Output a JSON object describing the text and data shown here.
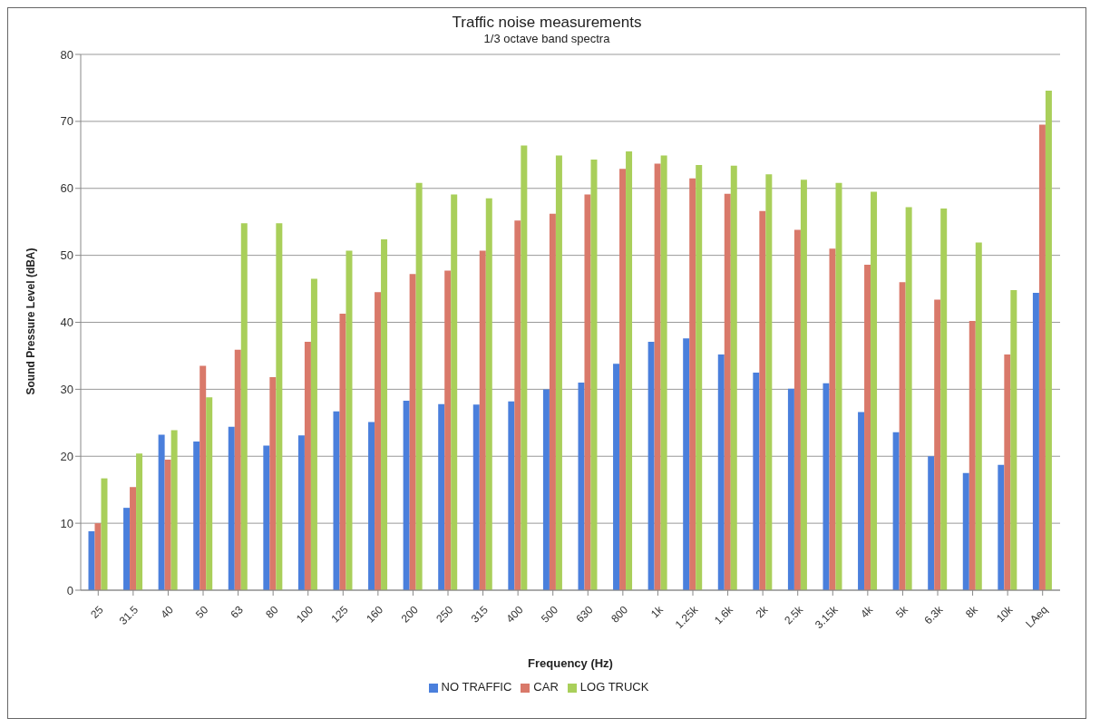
{
  "chart_data": {
    "type": "bar",
    "title": "Traffic noise measurements",
    "subtitle": "1/3 octave band spectra",
    "xlabel": "Frequency (Hz)",
    "ylabel": "Sound Pressure Level (dBA)",
    "categories": [
      "25",
      "31.5",
      "40",
      "50",
      "63",
      "80",
      "100",
      "125",
      "160",
      "200",
      "250",
      "315",
      "400",
      "500",
      "630",
      "800",
      "1k",
      "1.25k",
      "1.6k",
      "2k",
      "2.5k",
      "3.15k",
      "4k",
      "5k",
      "6.3k",
      "8k",
      "10k",
      "LAeq"
    ],
    "series": [
      {
        "name": "NO TRAFFIC",
        "color": "#4a7fdc",
        "values": [
          8.8,
          12.3,
          23.2,
          22.2,
          24.4,
          21.6,
          23.1,
          26.7,
          25.1,
          28.3,
          27.8,
          27.7,
          28.2,
          30,
          31,
          33.8,
          37.1,
          37.6,
          35.2,
          32.5,
          30.1,
          30.9,
          26.6,
          23.6,
          20,
          17.5,
          18.7,
          44.4
        ]
      },
      {
        "name": "CAR",
        "color": "#d9796a",
        "values": [
          10,
          15.4,
          19.5,
          33.5,
          35.9,
          31.8,
          37.1,
          41.3,
          44.5,
          47.2,
          47.7,
          50.7,
          55.2,
          56.2,
          59.1,
          62.9,
          63.7,
          61.5,
          59.2,
          56.6,
          53.8,
          51,
          48.6,
          46,
          43.4,
          40.2,
          35.2,
          69.5
        ]
      },
      {
        "name": "LOG TRUCK",
        "color": "#a9cf5a",
        "values": [
          16.7,
          20.4,
          23.9,
          28.8,
          54.8,
          54.8,
          46.5,
          50.7,
          52.4,
          60.8,
          59.1,
          58.5,
          66.4,
          64.9,
          64.3,
          65.5,
          64.9,
          63.5,
          63.4,
          62.1,
          61.3,
          60.8,
          59.5,
          57.2,
          57,
          51.9,
          44.8,
          74.6
        ]
      }
    ],
    "ylim": [
      0,
      80
    ],
    "yticks": [
      0,
      10,
      20,
      30,
      40,
      50,
      60,
      70,
      80
    ],
    "grid": "y",
    "legend": "bottom"
  }
}
